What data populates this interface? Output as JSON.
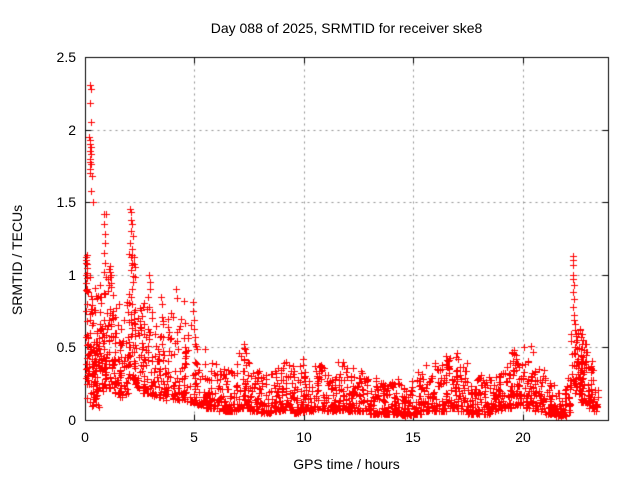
{
  "figure": {
    "background": "#ffffff",
    "text_color": "#000000"
  },
  "chart_data": {
    "type": "scatter",
    "title": "Day 088 of 2025, SRMTID for receiver ske8",
    "xlabel": "GPS time / hours",
    "ylabel": "SRMTID / TECUs",
    "xlim": [
      0,
      23.9
    ],
    "ylim": [
      0,
      2.5
    ],
    "xtick_values": [
      0,
      5,
      10,
      15,
      20
    ],
    "xtick_labels": [
      "0",
      "5",
      "10",
      "15",
      "20"
    ],
    "ytick_values": [
      0,
      0.5,
      1,
      1.5,
      2,
      2.5
    ],
    "ytick_labels": [
      "0",
      "0.5",
      "1",
      "1.5",
      "2",
      "2.5"
    ],
    "grid": {
      "show": true,
      "color": "#909090",
      "dash": [
        2,
        4
      ]
    },
    "axis_color": "#000000",
    "tick_length": 6,
    "legend": "none",
    "marker": {
      "shape": "plus",
      "color": "#ff0000",
      "size": 7
    },
    "series": [
      {
        "name": "SRMTID",
        "seed": 88,
        "highlight_points": [
          [
            0.22,
            2.31
          ],
          [
            0.26,
            2.28
          ],
          [
            0.24,
            2.18
          ],
          [
            0.27,
            2.05
          ],
          [
            0.2,
            1.95
          ],
          [
            0.25,
            1.93
          ],
          [
            0.23,
            1.9
          ],
          [
            0.28,
            1.88
          ],
          [
            0.22,
            1.85
          ],
          [
            0.26,
            1.83
          ],
          [
            0.24,
            1.8
          ],
          [
            0.21,
            1.78
          ],
          [
            0.27,
            1.76
          ],
          [
            0.25,
            1.73
          ],
          [
            0.23,
            1.7
          ],
          [
            0.3,
            1.68
          ],
          [
            0.26,
            1.58
          ],
          [
            0.35,
            1.5
          ],
          [
            0.05,
            1.1
          ],
          [
            0.08,
            1.05
          ],
          [
            0.06,
            1.0
          ],
          [
            0.1,
            0.98
          ],
          [
            0.04,
            0.75
          ],
          [
            0.07,
            0.68
          ],
          [
            0.85,
            1.42
          ],
          [
            0.95,
            1.42
          ],
          [
            0.88,
            1.35
          ],
          [
            0.9,
            1.28
          ],
          [
            0.92,
            1.22
          ],
          [
            0.87,
            1.15
          ],
          [
            0.91,
            1.08
          ],
          [
            0.89,
            1.02
          ],
          [
            1.12,
            1.06
          ],
          [
            1.18,
            1.0
          ],
          [
            2.05,
            1.45
          ],
          [
            2.12,
            1.43
          ],
          [
            2.08,
            1.38
          ],
          [
            2.15,
            1.35
          ],
          [
            2.1,
            1.3
          ],
          [
            2.18,
            1.27
          ],
          [
            2.06,
            1.22
          ],
          [
            2.13,
            1.18
          ],
          [
            2.09,
            1.12
          ],
          [
            2.16,
            1.08
          ],
          [
            2.11,
            1.03
          ],
          [
            2.2,
            0.99
          ],
          [
            2.92,
            1.0
          ],
          [
            2.95,
            0.95
          ],
          [
            2.98,
            0.9
          ],
          [
            2.9,
            0.85
          ],
          [
            3.48,
            0.85
          ],
          [
            3.52,
            0.8
          ],
          [
            4.18,
            0.9
          ],
          [
            4.22,
            0.84
          ],
          [
            4.93,
            0.81
          ],
          [
            4.95,
            0.75
          ],
          [
            4.97,
            0.69
          ],
          [
            4.99,
            0.63
          ],
          [
            5.01,
            0.57
          ],
          [
            5.03,
            0.52
          ],
          [
            7.25,
            0.52
          ],
          [
            7.3,
            0.49
          ],
          [
            7.35,
            0.46
          ],
          [
            7.15,
            0.44
          ],
          [
            8.55,
            0.32
          ],
          [
            9.2,
            0.4
          ],
          [
            9.95,
            0.42
          ],
          [
            9.97,
            0.38
          ],
          [
            10.8,
            0.38
          ],
          [
            11.8,
            0.4
          ],
          [
            11.85,
            0.37
          ],
          [
            12.6,
            0.34
          ],
          [
            15.6,
            0.38
          ],
          [
            16.5,
            0.44
          ],
          [
            16.55,
            0.41
          ],
          [
            17.0,
            0.46
          ],
          [
            17.05,
            0.42
          ],
          [
            19.6,
            0.48
          ],
          [
            19.7,
            0.45
          ],
          [
            20.05,
            0.5
          ],
          [
            20.4,
            0.51
          ],
          [
            20.45,
            0.47
          ],
          [
            22.28,
            1.13
          ],
          [
            22.3,
            1.1
          ],
          [
            22.32,
            1.07
          ],
          [
            22.29,
            1.0
          ],
          [
            22.31,
            0.97
          ],
          [
            22.33,
            0.93
          ],
          [
            22.3,
            0.88
          ],
          [
            22.34,
            0.83
          ],
          [
            22.31,
            0.78
          ],
          [
            22.35,
            0.72
          ],
          [
            22.38,
            0.66
          ],
          [
            22.4,
            0.62
          ],
          [
            22.45,
            0.58
          ],
          [
            22.5,
            0.55
          ],
          [
            22.55,
            0.6
          ],
          [
            22.6,
            0.63
          ],
          [
            22.65,
            0.57
          ],
          [
            22.7,
            0.52
          ],
          [
            22.75,
            0.55
          ],
          [
            22.8,
            0.48
          ],
          [
            22.85,
            0.52
          ],
          [
            22.9,
            0.45
          ]
        ],
        "density_bands": [
          [
            0.02,
            0.3,
            0.25,
            1.15,
            35,
            1.5
          ],
          [
            0.05,
            0.55,
            0.12,
            0.95,
            45,
            1.6
          ],
          [
            0.3,
            0.65,
            0.08,
            0.55,
            28,
            1.5
          ],
          [
            0.5,
            0.95,
            0.2,
            1.05,
            60,
            1.7
          ],
          [
            0.9,
            1.4,
            0.22,
            1.05,
            65,
            1.8
          ],
          [
            1.35,
            1.65,
            0.18,
            0.8,
            30,
            1.7
          ],
          [
            1.6,
            1.95,
            0.15,
            0.7,
            28,
            1.7
          ],
          [
            1.9,
            2.3,
            0.28,
            1.15,
            55,
            1.6
          ],
          [
            2.25,
            2.7,
            0.22,
            0.8,
            40,
            1.7
          ],
          [
            2.65,
            3.1,
            0.18,
            0.88,
            45,
            1.8
          ],
          [
            3.05,
            3.6,
            0.16,
            0.8,
            45,
            1.8
          ],
          [
            3.55,
            4.1,
            0.14,
            0.75,
            42,
            1.9
          ],
          [
            4.05,
            4.6,
            0.14,
            0.82,
            40,
            1.9
          ],
          [
            4.55,
            5.1,
            0.12,
            0.7,
            40,
            2.0
          ],
          [
            5.05,
            5.55,
            0.1,
            0.5,
            40,
            2.2
          ],
          [
            5.5,
            6.0,
            0.08,
            0.4,
            42,
            2.2
          ],
          [
            6.0,
            6.5,
            0.06,
            0.36,
            42,
            2.2
          ],
          [
            6.5,
            7.0,
            0.06,
            0.4,
            42,
            2.2
          ],
          [
            7.0,
            7.5,
            0.08,
            0.5,
            46,
            2.2
          ],
          [
            7.5,
            8.0,
            0.06,
            0.34,
            42,
            2.2
          ],
          [
            8.0,
            8.5,
            0.05,
            0.31,
            42,
            2.2
          ],
          [
            8.5,
            9.0,
            0.06,
            0.36,
            42,
            2.2
          ],
          [
            9.0,
            9.5,
            0.07,
            0.4,
            44,
            2.2
          ],
          [
            9.5,
            10.0,
            0.05,
            0.38,
            42,
            2.2
          ],
          [
            10.0,
            10.5,
            0.06,
            0.34,
            42,
            2.2
          ],
          [
            10.5,
            11.0,
            0.07,
            0.38,
            44,
            2.2
          ],
          [
            11.0,
            11.5,
            0.06,
            0.34,
            42,
            2.2
          ],
          [
            11.5,
            12.0,
            0.07,
            0.4,
            46,
            2.2
          ],
          [
            12.0,
            12.5,
            0.06,
            0.36,
            44,
            2.2
          ],
          [
            12.5,
            13.0,
            0.06,
            0.33,
            42,
            2.2
          ],
          [
            13.0,
            13.5,
            0.04,
            0.29,
            42,
            2.2
          ],
          [
            13.5,
            14.0,
            0.04,
            0.27,
            42,
            2.2
          ],
          [
            14.0,
            14.5,
            0.04,
            0.29,
            42,
            2.2
          ],
          [
            14.5,
            15.0,
            0.03,
            0.27,
            42,
            2.2
          ],
          [
            15.0,
            15.5,
            0.04,
            0.33,
            42,
            2.2
          ],
          [
            15.5,
            16.0,
            0.06,
            0.38,
            44,
            2.2
          ],
          [
            16.0,
            16.5,
            0.06,
            0.4,
            44,
            2.2
          ],
          [
            16.5,
            17.0,
            0.08,
            0.45,
            46,
            2.2
          ],
          [
            17.0,
            17.5,
            0.06,
            0.4,
            44,
            2.2
          ],
          [
            17.5,
            18.0,
            0.04,
            0.29,
            42,
            2.2
          ],
          [
            18.0,
            18.5,
            0.04,
            0.31,
            42,
            2.2
          ],
          [
            18.5,
            19.0,
            0.06,
            0.34,
            42,
            2.2
          ],
          [
            19.0,
            19.5,
            0.08,
            0.4,
            44,
            2.2
          ],
          [
            19.5,
            20.0,
            0.1,
            0.48,
            46,
            2.0
          ],
          [
            20.0,
            20.5,
            0.08,
            0.43,
            44,
            2.1
          ],
          [
            20.5,
            21.0,
            0.06,
            0.38,
            42,
            2.2
          ],
          [
            21.0,
            21.5,
            0.04,
            0.3,
            44,
            2.3
          ],
          [
            21.5,
            22.0,
            0.03,
            0.24,
            48,
            2.3
          ],
          [
            22.0,
            22.2,
            0.05,
            0.3,
            16,
            2.0
          ],
          [
            22.2,
            22.45,
            0.25,
            0.7,
            20,
            1.5
          ],
          [
            22.4,
            22.7,
            0.18,
            0.62,
            28,
            1.7
          ],
          [
            22.65,
            23.0,
            0.12,
            0.55,
            40,
            1.9
          ],
          [
            23.0,
            23.25,
            0.08,
            0.42,
            30,
            2.0
          ],
          [
            23.25,
            23.45,
            0.06,
            0.25,
            12,
            2.0
          ]
        ]
      }
    ]
  }
}
